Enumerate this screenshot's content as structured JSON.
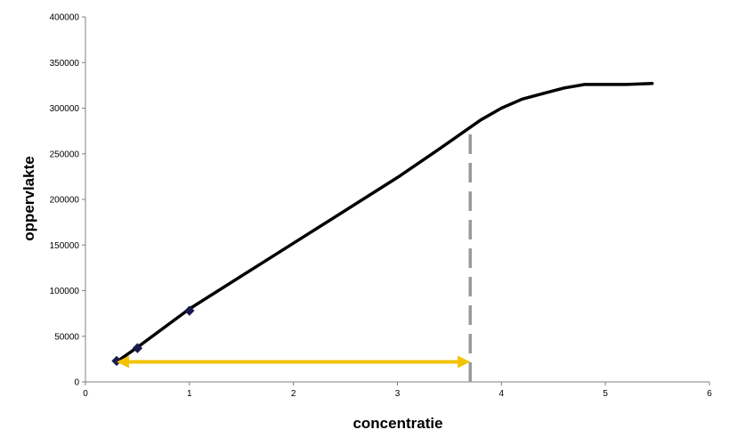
{
  "chart_data": {
    "type": "line",
    "title": "",
    "xlabel": "concentratie",
    "ylabel": "oppervlakte",
    "xlim": [
      0,
      6
    ],
    "ylim": [
      0,
      400000
    ],
    "x_ticks": [
      0,
      1,
      2,
      3,
      4,
      5,
      6
    ],
    "y_ticks": [
      0,
      50000,
      100000,
      150000,
      200000,
      250000,
      300000,
      350000,
      400000
    ],
    "grid": false,
    "legend": "none",
    "series": [
      {
        "style": "line",
        "color": "#000000",
        "x": [
          0.3,
          0.5,
          1.0,
          2.0,
          3.0,
          3.4,
          3.6,
          3.8,
          4.0,
          4.2,
          4.4,
          4.6,
          4.8,
          5.0,
          5.2,
          5.45
        ],
        "values": [
          22000,
          38000,
          80000,
          152000,
          224000,
          255000,
          271000,
          287000,
          300000,
          310000,
          316000,
          322000,
          326000,
          326000,
          326000,
          327000
        ]
      },
      {
        "style": "markers",
        "marker": "diamond",
        "color": "#1a1a4d",
        "x": [
          0.3,
          0.5,
          1.0
        ],
        "values": [
          23000,
          37000,
          78000
        ]
      }
    ],
    "annotations": [
      {
        "type": "dashed-vertical-line",
        "color": "#999999",
        "x": 3.7,
        "y_from": 0,
        "y_to": 278000
      },
      {
        "type": "double-arrow",
        "color": "#f2c200",
        "x_from": 0.3,
        "x_to": 3.7,
        "y": 22000
      }
    ]
  }
}
